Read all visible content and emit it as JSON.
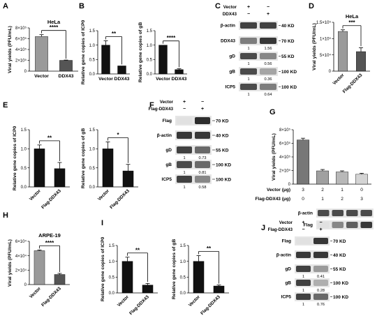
{
  "panel_letters": [
    "A",
    "B",
    "C",
    "D",
    "E",
    "F",
    "G",
    "H",
    "I",
    "J"
  ],
  "chart_data": [
    {
      "id": "A",
      "type": "bar",
      "title": "HeLa",
      "ylabel": "Viral yields (PFU/mL)",
      "categories": [
        "Vector",
        "DDX43"
      ],
      "values": [
        640000.0,
        200000.0
      ],
      "errors": [
        35000.0,
        5000.0
      ],
      "colors": [
        "#9a9a9a",
        "#555555"
      ],
      "ylim": [
        0,
        800000.0
      ],
      "yticks": [
        0,
        200000.0,
        400000.0,
        600000.0,
        800000.0
      ],
      "ytick_labels": [
        "0",
        "2×10⁵",
        "4×10⁵",
        "6×10⁵",
        "8×10⁵"
      ],
      "significance": "****",
      "xlabel_rotate": false
    },
    {
      "id": "B1",
      "type": "bar",
      "ylabel": "Relative gene copies of ICP0",
      "categories": [
        "Vector",
        "DDX43"
      ],
      "values": [
        1.0,
        0.28
      ],
      "errors": [
        0.15,
        0.0
      ],
      "colors": [
        "#111111",
        "#111111"
      ],
      "ylim": [
        0,
        1.5
      ],
      "yticks": [
        0,
        0.5,
        1.0,
        1.5
      ],
      "ytick_labels": [
        "0.0",
        "0.5",
        "1.0",
        "1.5"
      ],
      "significance": "**",
      "xlabel_rotate": false
    },
    {
      "id": "B2",
      "type": "bar",
      "ylabel": "Relative gene copies of gB",
      "categories": [
        "Vector",
        "DDX43"
      ],
      "values": [
        1.0,
        0.15
      ],
      "errors": [
        0.0,
        0.03
      ],
      "colors": [
        "#111111",
        "#111111"
      ],
      "ylim": [
        0,
        1.5
      ],
      "yticks": [
        0,
        0.5,
        1.0,
        1.5
      ],
      "ytick_labels": [
        "0.0",
        "0.5",
        "1.0",
        "1.5"
      ],
      "significance": "****",
      "xlabel_rotate": false
    },
    {
      "id": "D",
      "type": "bar",
      "title": "HeLa",
      "ylabel": "Viral yields (PFU/mL)",
      "categories": [
        "Vector",
        "Flag-DDX43"
      ],
      "values": [
        122000.0,
        60000.0
      ],
      "errors": [
        5000.0,
        12000.0
      ],
      "colors": [
        "#9a9a9a",
        "#555555"
      ],
      "ylim": [
        0,
        150000.0
      ],
      "yticks": [
        0,
        50000.0,
        100000.0,
        150000.0
      ],
      "ytick_labels": [
        "0",
        "5×10⁴",
        "1×10⁵",
        "1.5×10⁵"
      ],
      "significance": "***",
      "xlabel_rotate": true
    },
    {
      "id": "E1",
      "type": "bar",
      "ylabel": "Relative gene copies of ICP0",
      "categories": [
        "Vector",
        "Flag-DDX43"
      ],
      "values": [
        1.0,
        0.48
      ],
      "errors": [
        0.1,
        0.16
      ],
      "colors": [
        "#111111",
        "#111111"
      ],
      "ylim": [
        0,
        1.5
      ],
      "yticks": [
        0,
        0.5,
        1.0,
        1.5
      ],
      "ytick_labels": [
        "0.0",
        "0.5",
        "1.0",
        "1.5"
      ],
      "significance": "**",
      "xlabel_rotate": true
    },
    {
      "id": "E2",
      "type": "bar",
      "ylabel": "Relative gene copies of gB",
      "categories": [
        "Vector",
        "Flag-DDX43"
      ],
      "values": [
        1.0,
        0.42
      ],
      "errors": [
        0.18,
        0.17
      ],
      "colors": [
        "#111111",
        "#111111"
      ],
      "ylim": [
        0,
        1.5
      ],
      "yticks": [
        0,
        0.5,
        1.0,
        1.5
      ],
      "ytick_labels": [
        "0.0",
        "0.5",
        "1.0",
        "1.5"
      ],
      "significance": "*",
      "xlabel_rotate": true
    },
    {
      "id": "G",
      "type": "bar",
      "ylabel": "Viral yields (PFU/mL)",
      "categories": [
        "3/0",
        "2/1",
        "1/2",
        "0/3"
      ],
      "values": [
        650000.0,
        195000.0,
        180000.0,
        145000.0
      ],
      "errors": [
        25000.0,
        20000.0,
        15000.0,
        15000.0
      ],
      "colors": [
        "#777777",
        "#a0a0a0",
        "#b8b8b8",
        "#d4d4d4"
      ],
      "ylim": [
        0,
        800000.0
      ],
      "yticks": [
        0,
        200000.0,
        400000.0,
        600000.0,
        800000.0
      ],
      "ytick_labels": [
        "0",
        "2×10⁵",
        "4×10⁵",
        "6×10⁵",
        "8×10⁵"
      ],
      "row_labels": [
        "Vector (μg)",
        "Flag-DDX43 (μg)"
      ],
      "row_values": [
        [
          "3",
          "2",
          "1",
          "0"
        ],
        [
          "0",
          "1",
          "2",
          "3"
        ]
      ]
    },
    {
      "id": "H",
      "type": "bar",
      "title": "ARPE-19",
      "ylabel": "Viral yields (PFU/mL)",
      "categories": [
        "Vector",
        "Flag-DDX43"
      ],
      "values": [
        47000.0,
        14000.0
      ],
      "errors": [
        1000.0,
        1500.0
      ],
      "colors": [
        "#9a9a9a",
        "#555555"
      ],
      "ylim": [
        0,
        60000.0
      ],
      "yticks": [
        0,
        20000.0,
        40000.0,
        60000.0
      ],
      "ytick_labels": [
        "0",
        "2×10⁴",
        "4×10⁴",
        "6×10⁴"
      ],
      "significance": "****",
      "xlabel_rotate": true
    },
    {
      "id": "I1",
      "type": "bar",
      "ylabel": "Relative gene copies of ICP0",
      "categories": [
        "Vector",
        "Flag-DDX43"
      ],
      "values": [
        1.0,
        0.25
      ],
      "errors": [
        0.13,
        0.05
      ],
      "colors": [
        "#111111",
        "#111111"
      ],
      "ylim": [
        0,
        1.5
      ],
      "yticks": [
        0,
        0.5,
        1.0,
        1.5
      ],
      "ytick_labels": [
        "0.0",
        "0.5",
        "1.0",
        "1.5"
      ],
      "significance": "**",
      "xlabel_rotate": true
    },
    {
      "id": "I2",
      "type": "bar",
      "ylabel": "Relative gene copies of gB",
      "categories": [
        "Vector",
        "Flag-DDX43"
      ],
      "values": [
        1.0,
        0.22
      ],
      "errors": [
        0.18,
        0.03
      ],
      "colors": [
        "#111111",
        "#111111"
      ],
      "ylim": [
        0,
        1.5
      ],
      "yticks": [
        0,
        0.5,
        1.0,
        1.5
      ],
      "ytick_labels": [
        "0.0",
        "0.5",
        "1.0",
        "1.5"
      ],
      "significance": "**",
      "xlabel_rotate": true
    }
  ],
  "blots": [
    {
      "id": "C",
      "header_rows": [
        {
          "label": "Vector",
          "signs": [
            "+",
            "−"
          ]
        },
        {
          "label": "DDX43",
          "signs": [
            "−",
            "+"
          ]
        }
      ],
      "rows": [
        {
          "left": "β-actin",
          "right": "40 KD",
          "ratios": []
        },
        {
          "left": "DDX43",
          "right": "70 KD",
          "ratios": [
            "1",
            "1.56"
          ]
        },
        {
          "left": "gD",
          "right": "55 KD",
          "ratios": [
            "1",
            "0.56"
          ]
        },
        {
          "left": "gB",
          "right": "100 KD",
          "ratios": [
            "1",
            "0.36"
          ]
        },
        {
          "left": "ICP5",
          "right": "100 KD",
          "ratios": [
            "1",
            "0.64"
          ]
        }
      ],
      "band_levels": [
        [
          0.85,
          0.85
        ],
        [
          0.55,
          0.9
        ],
        [
          0.8,
          0.5
        ],
        [
          0.8,
          0.35
        ],
        [
          0.8,
          0.55
        ]
      ]
    },
    {
      "id": "F",
      "header_rows": [
        {
          "label": "Vector",
          "signs": [
            "+",
            "−"
          ]
        },
        {
          "label": "Flag-DDX43",
          "signs": [
            "−",
            "+"
          ]
        }
      ],
      "rows": [
        {
          "left": "Flag",
          "right": "70 KD",
          "ratios": []
        },
        {
          "left": "β-actin",
          "right": "40 KD",
          "ratios": []
        },
        {
          "left": "gD",
          "right": "55 KD",
          "ratios": [
            "1",
            "0.73"
          ]
        },
        {
          "left": "gB",
          "right": "100 KD",
          "ratios": [
            "1",
            "0.81"
          ]
        },
        {
          "left": "ICP5",
          "right": "100 KD",
          "ratios": [
            "1",
            "0.58"
          ]
        }
      ],
      "band_levels": [
        [
          0.05,
          0.95
        ],
        [
          0.9,
          0.9
        ],
        [
          0.85,
          0.65
        ],
        [
          0.8,
          0.65
        ],
        [
          0.85,
          0.5
        ]
      ]
    },
    {
      "id": "G-blot",
      "rows": [
        {
          "left": "β-actin",
          "right": "",
          "ratios": []
        },
        {
          "left": "Flag",
          "right": "",
          "ratios": []
        }
      ],
      "band_levels": [
        [
          0.8,
          0.8,
          0.8,
          0.8
        ],
        [
          0.05,
          0.5,
          0.7,
          0.9
        ]
      ]
    },
    {
      "id": "J",
      "header_rows": [
        {
          "label": "Vector",
          "signs": [
            "+",
            "−"
          ]
        },
        {
          "label": "Flag-DDX43",
          "signs": [
            "−",
            "+"
          ]
        }
      ],
      "rows": [
        {
          "left": "Flag",
          "right": "70 KD",
          "ratios": []
        },
        {
          "left": "β-actin",
          "right": "40 KD",
          "ratios": []
        },
        {
          "left": "gD",
          "right": "55 KD",
          "ratios": [
            "1",
            "0.41"
          ]
        },
        {
          "left": "gB",
          "right": "100 KD",
          "ratios": [
            "1",
            "0.28"
          ]
        },
        {
          "left": "ICP5",
          "right": "100 KD",
          "ratios": [
            "1",
            "0.76"
          ]
        }
      ],
      "band_levels": [
        [
          0.05,
          0.9
        ],
        [
          0.9,
          0.9
        ],
        [
          0.85,
          0.4
        ],
        [
          0.85,
          0.3
        ],
        [
          0.85,
          0.65
        ]
      ]
    }
  ]
}
